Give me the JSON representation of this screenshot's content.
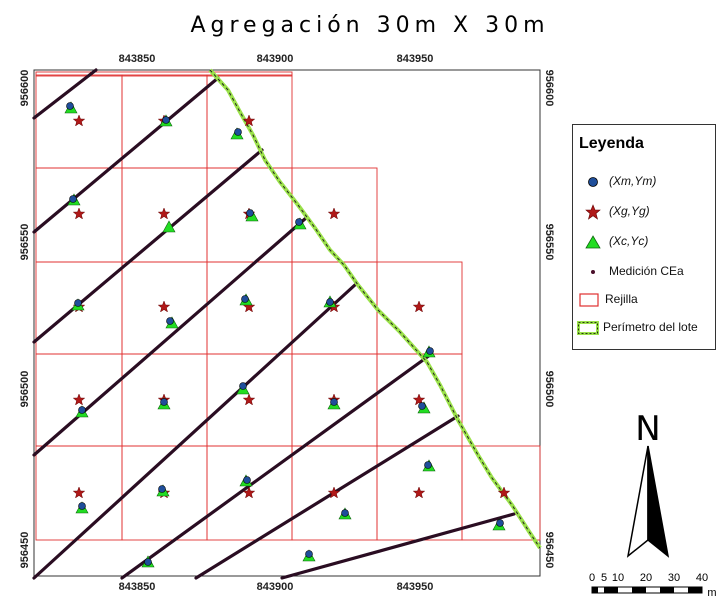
{
  "title": "Agregación 30m X 30m",
  "axes": {
    "x_ticks": [
      "843850",
      "843900",
      "843950"
    ],
    "y_ticks": [
      "956600",
      "956550",
      "956500",
      "956450"
    ]
  },
  "legend": {
    "title": "Leyenda",
    "items": [
      {
        "label": "(Xm,Ym)",
        "symbol": "circle-dot",
        "color": "#1f4e9a"
      },
      {
        "label": "(Xg,Yg)",
        "symbol": "star",
        "color": "#b01818"
      },
      {
        "label": "(Xc,Yc)",
        "symbol": "triangle",
        "color": "#22dd22"
      },
      {
        "label": "Medición CEa",
        "symbol": "small-dot",
        "color": "#4a0f2a"
      },
      {
        "label": "Rejilla",
        "symbol": "rectangle-outline",
        "color": "#e03030"
      },
      {
        "label": "Perímetro del lote",
        "symbol": "dashed-outline",
        "color": "#9be24a"
      }
    ]
  },
  "north_arrow": {
    "label": "N",
    "icon": "north-arrow-icon"
  },
  "scale_bar": {
    "ticks": [
      "0",
      "5",
      "10",
      "20",
      "30",
      "40"
    ],
    "unit": "m"
  },
  "colors": {
    "grid": "#e03030",
    "perimeter": "#9be24a",
    "transect": "#2a0d22",
    "star": "#b01818",
    "triangle": "#22dd22",
    "circle": "#1f4e9a"
  }
}
